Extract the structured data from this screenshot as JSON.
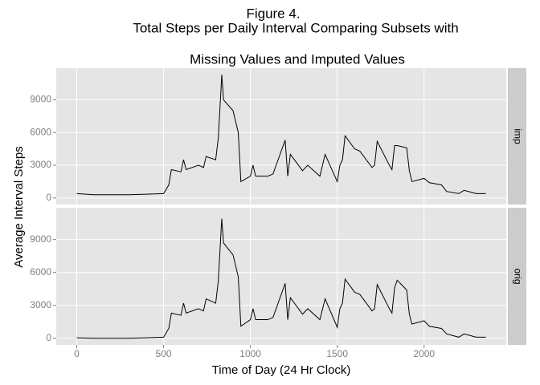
{
  "chart_data": {
    "type": "line",
    "title": [
      "Figure 4.",
      "Total Steps per Daily Interval Comparing Subsets with",
      "Missing Values and Imputed Values"
    ],
    "x_label": "Time of Day (24 Hr Clock)",
    "y_label": "Average Interval Steps",
    "x": [
      0,
      100,
      200,
      300,
      400,
      500,
      530,
      545,
      600,
      615,
      630,
      700,
      730,
      745,
      800,
      815,
      830,
      835,
      845,
      900,
      930,
      945,
      1000,
      1015,
      1030,
      1100,
      1130,
      1200,
      1215,
      1230,
      1300,
      1330,
      1400,
      1430,
      1500,
      1515,
      1530,
      1545,
      1600,
      1630,
      1700,
      1715,
      1730,
      1800,
      1815,
      1830,
      1845,
      1900,
      1915,
      1930,
      2000,
      2030,
      2100,
      2130,
      2200,
      2230,
      2300,
      2355
    ],
    "series": [
      {
        "name": "imp",
        "color": "#000000",
        "values": [
          400,
          300,
          300,
          300,
          350,
          400,
          1200,
          2600,
          2400,
          3500,
          2600,
          3000,
          2800,
          3800,
          3500,
          5500,
          9800,
          11300,
          9000,
          8000,
          6000,
          1500,
          2000,
          3000,
          2000,
          2000,
          2200,
          5300,
          2000,
          4000,
          2500,
          3000,
          2000,
          4000,
          1500,
          3000,
          3500,
          5700,
          4500,
          4300,
          2800,
          3000,
          5200,
          3000,
          2600,
          4800,
          4800,
          4600,
          2500,
          1500,
          1800,
          1400,
          1200,
          600,
          400,
          700,
          400,
          400
        ]
      },
      {
        "name": "orig",
        "color": "#000000",
        "values": [
          50,
          0,
          0,
          0,
          50,
          100,
          900,
          2300,
          2100,
          3200,
          2300,
          2700,
          2500,
          3600,
          3200,
          5200,
          9500,
          10900,
          8700,
          7600,
          5600,
          1100,
          1700,
          2700,
          1700,
          1700,
          1900,
          5000,
          1700,
          3700,
          2200,
          2700,
          1700,
          3600,
          1000,
          2700,
          3200,
          5400,
          4200,
          4000,
          2500,
          2700,
          4900,
          2700,
          2300,
          4600,
          5300,
          4400,
          2200,
          1300,
          1600,
          1100,
          900,
          400,
          100,
          400,
          100,
          100
        ]
      }
    ],
    "xlim": [
      -118,
      2473
    ],
    "xticks": [
      0,
      500,
      1000,
      1500,
      2000
    ],
    "ylim": [
      -600,
      11900
    ],
    "yticks": [
      0,
      3000,
      6000,
      9000
    ],
    "grid": true
  }
}
